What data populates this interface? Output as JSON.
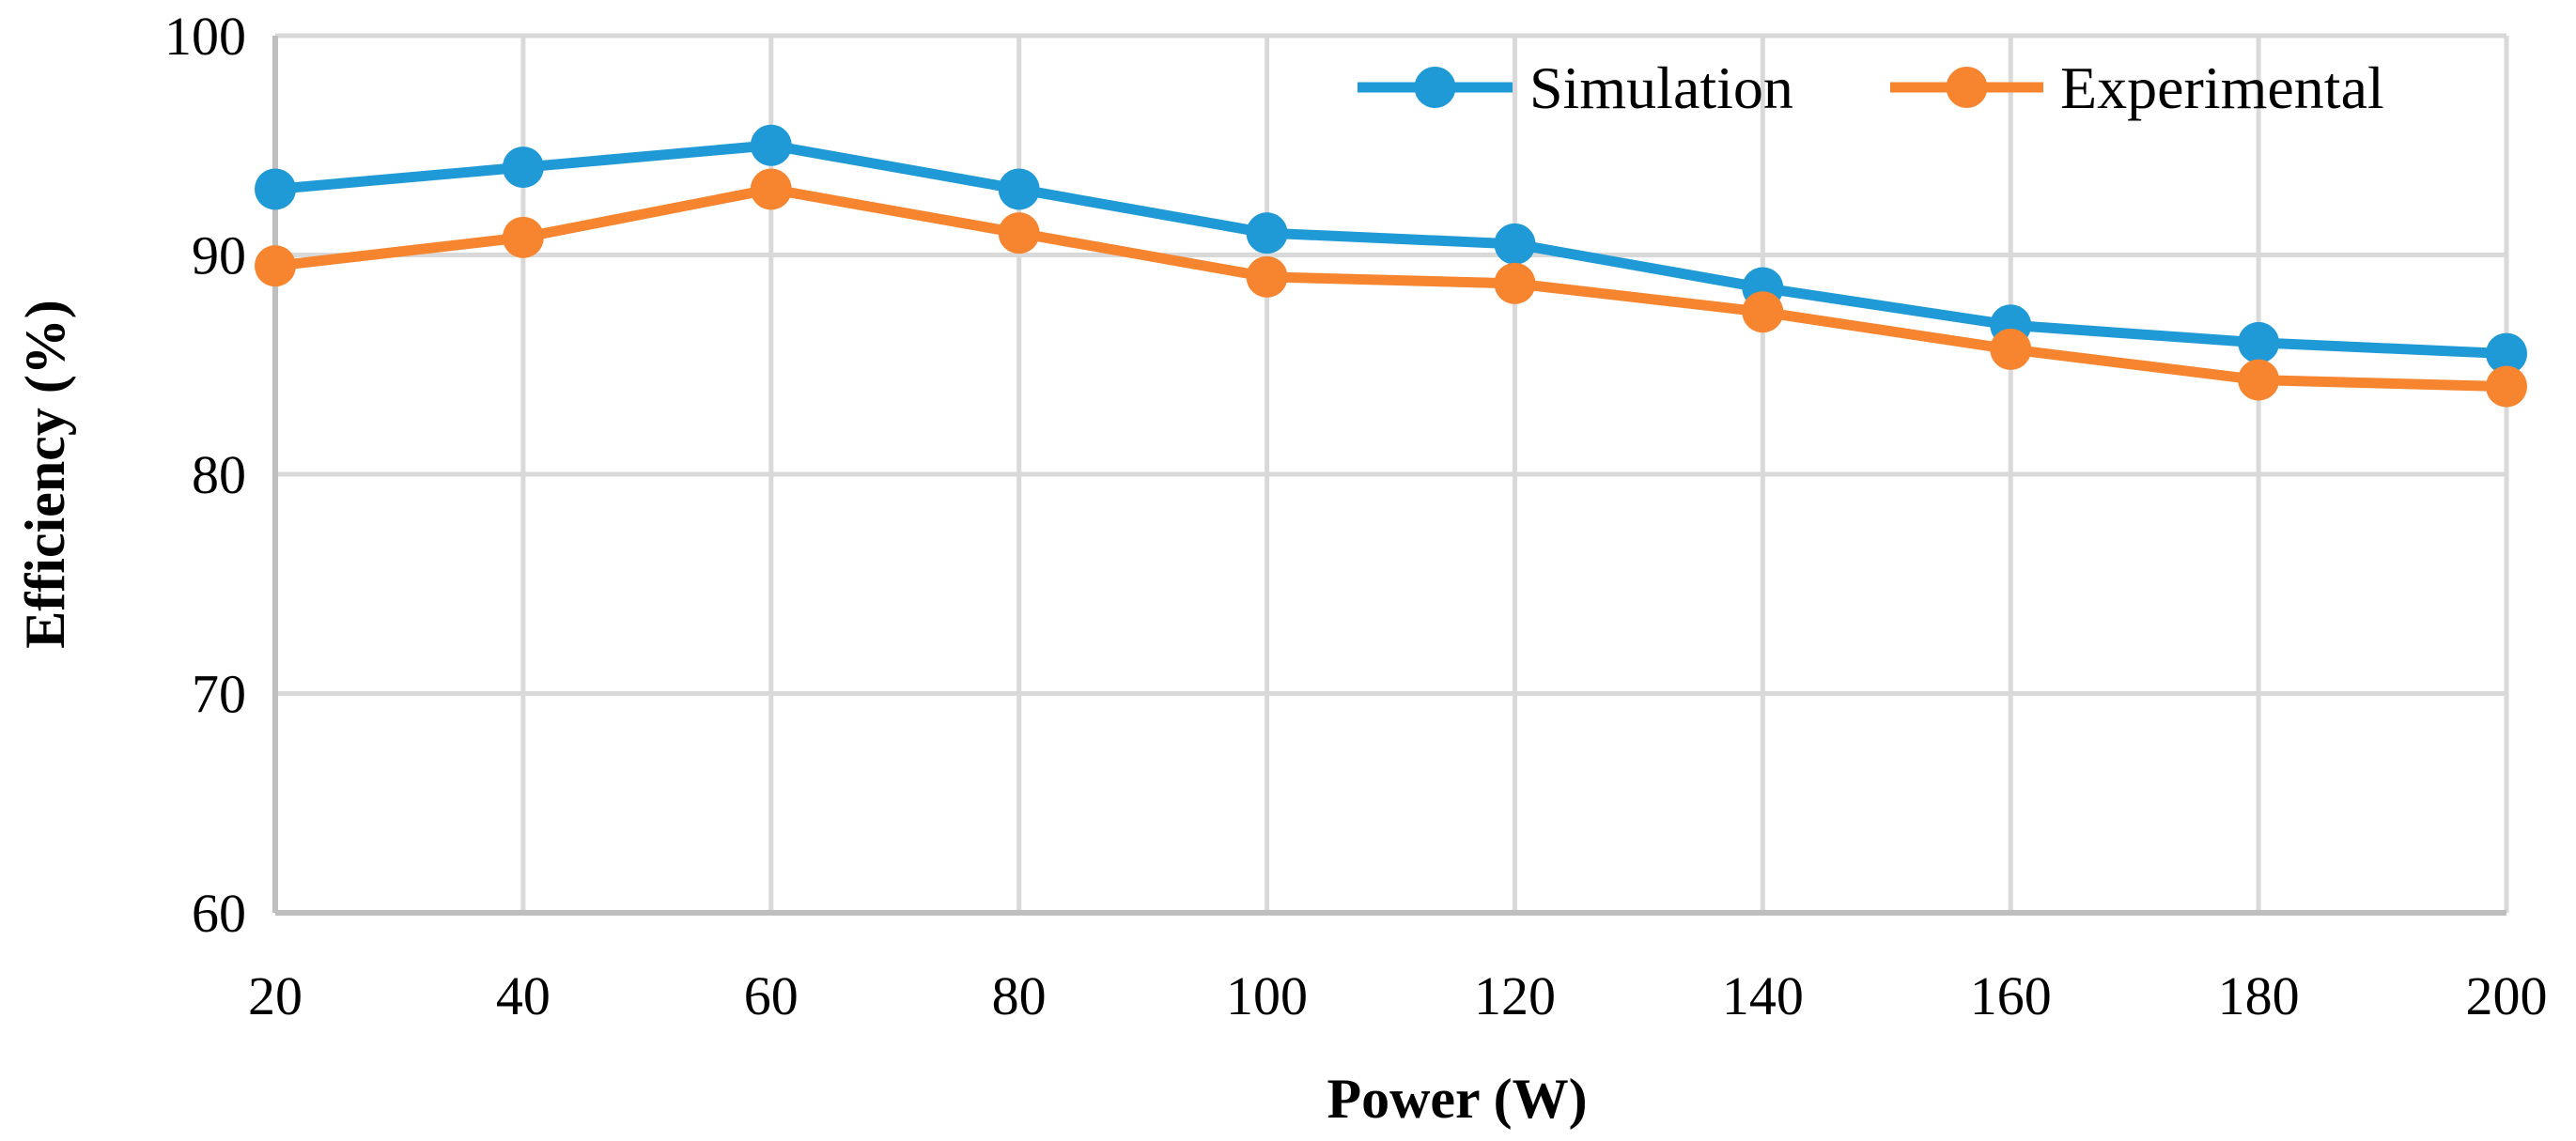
{
  "chart_data": {
    "type": "line",
    "title": "",
    "xlabel": "Power (W)",
    "ylabel": "Efficiency (%)",
    "x": [
      20,
      40,
      60,
      80,
      100,
      120,
      140,
      160,
      180,
      200
    ],
    "xlim": [
      20,
      200
    ],
    "ylim": [
      60,
      100
    ],
    "xticks": [
      "20",
      "40",
      "60",
      "80",
      "100",
      "120",
      "140",
      "160",
      "180",
      "200"
    ],
    "yticks": [
      "60",
      "70",
      "80",
      "90",
      "100"
    ],
    "grid": true,
    "legend_position": "top-right",
    "series": [
      {
        "name": "Simulation",
        "color": "#1F9AD6",
        "values": [
          93,
          94,
          95,
          93,
          91,
          90.5,
          88.5,
          86.8,
          86,
          85.5
        ]
      },
      {
        "name": "Experimental",
        "color": "#F7852F",
        "values": [
          89.5,
          90.8,
          93,
          91,
          89,
          88.7,
          87.4,
          85.7,
          84.3,
          84
        ]
      }
    ]
  }
}
